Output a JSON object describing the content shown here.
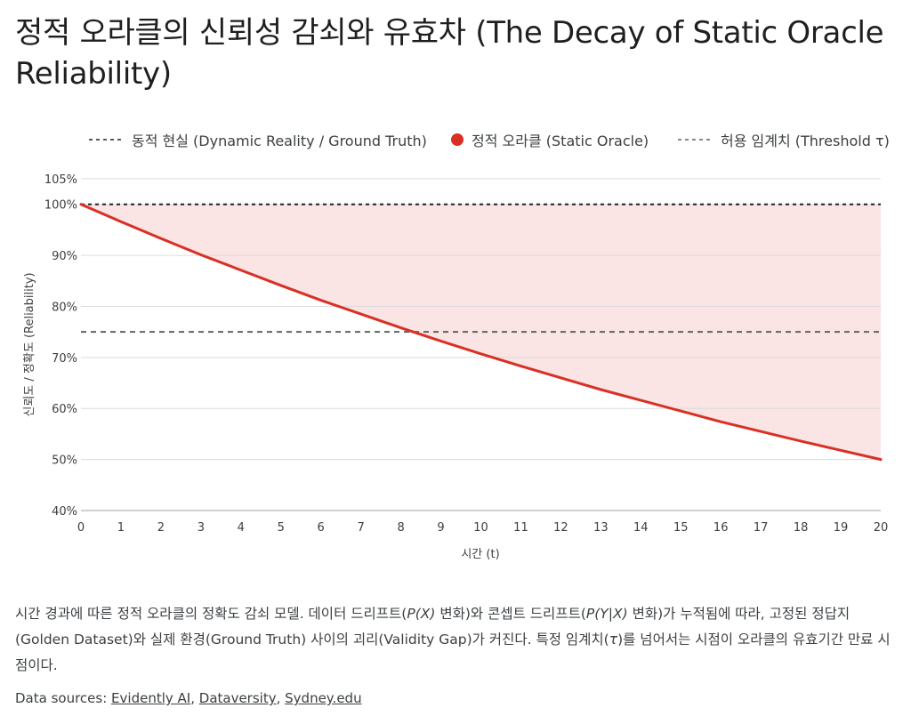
{
  "title": "정적 오라클의 신뢰성 감쇠와 유효차 (The Decay of Static Oracle Reliability)",
  "legend": {
    "truth": "동적 현실 (Dynamic Reality / Ground Truth)",
    "oracle": "정적 오라클 (Static Oracle)",
    "threshold": "허용 임계치 (Threshold τ)"
  },
  "colors": {
    "oracle": "#d93025",
    "gap_fill": "#fbe4e4",
    "truth_line": "#202124",
    "threshold_line": "#5f6368",
    "grid": "#dadce0"
  },
  "caption": {
    "p1": "시간 경과에 따른 정적 오라클의 정확도 감쇠 모델. 데이터 드리프트(",
    "m1": "P(X)",
    "p2": " 변화)와 콘셉트 드리프트(",
    "m2": "P(Y|X)",
    "p3": " 변화)가 누적됨에 따라, 고정된 정답지(Golden Dataset)와 실제 환경(Ground Truth) 사이의 괴리(Validity Gap)가 커진다. 특정 임계치(",
    "m3": "τ",
    "p4": ")를 넘어서는 시점이 오라클의 유효기간 만료 시점이다."
  },
  "sources": {
    "prefix": "Data sources: ",
    "links": [
      "Evidently AI",
      "Dataversity",
      "Sydney.edu"
    ],
    "sep": ", "
  },
  "chart_data": {
    "type": "line",
    "xlabel": "시간 (t)",
    "ylabel": "신뢰도 / 정확도 (Reliability)",
    "xlim": [
      0,
      20
    ],
    "ylim": [
      40,
      105
    ],
    "xticks": [
      0,
      1,
      2,
      3,
      4,
      5,
      6,
      7,
      8,
      9,
      10,
      11,
      12,
      13,
      14,
      15,
      16,
      17,
      18,
      19,
      20
    ],
    "yticks": [
      40,
      50,
      60,
      70,
      80,
      90,
      100,
      105
    ],
    "ytick_suffix": "%",
    "grid": true,
    "legend_position": "top",
    "series": [
      {
        "name": "동적 현실 (Dynamic Reality / Ground Truth)",
        "style": "dashed",
        "x": [
          0,
          20
        ],
        "values": [
          100,
          100
        ]
      },
      {
        "name": "정적 오라클 (Static Oracle)",
        "style": "solid",
        "x": [
          0,
          1,
          2,
          3,
          4,
          5,
          6,
          7,
          8,
          9,
          10,
          11,
          12,
          13,
          14,
          15,
          16,
          17,
          18,
          19,
          20
        ],
        "values": [
          100,
          96.6,
          93.3,
          90.1,
          87.1,
          84.1,
          81.2,
          78.5,
          75.8,
          73.2,
          70.7,
          68.3,
          66.0,
          63.7,
          61.6,
          59.5,
          57.4,
          55.5,
          53.6,
          51.8,
          50.0
        ]
      },
      {
        "name": "허용 임계치 (Threshold τ)",
        "style": "dashed",
        "x": [
          0,
          20
        ],
        "values": [
          75,
          75
        ]
      }
    ]
  }
}
